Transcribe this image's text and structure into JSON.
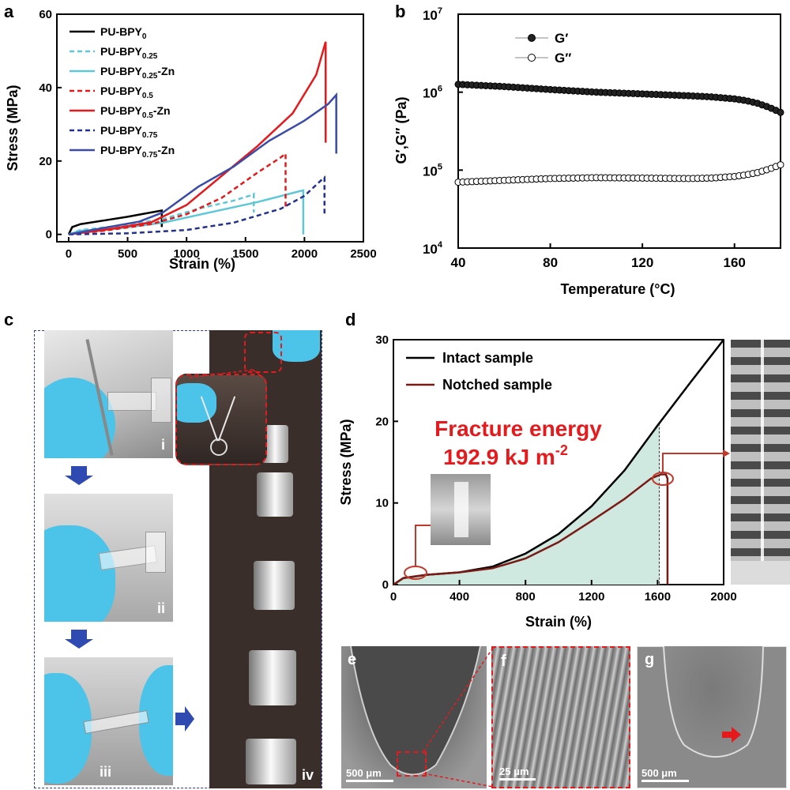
{
  "panel_labels": {
    "a": "a",
    "b": "b",
    "c": "c",
    "d": "d",
    "e": "e",
    "f": "f",
    "g": "g"
  },
  "chart_data": [
    {
      "panel": "a",
      "type": "line",
      "xlabel": "Strain (%)",
      "ylabel": "Stress (MPa)",
      "xlim": [
        -100,
        2500
      ],
      "ylim": [
        -2,
        60
      ],
      "xticks": [
        0,
        500,
        1000,
        1500,
        2000,
        2500
      ],
      "yticks": [
        0,
        20,
        40,
        60
      ],
      "legend_position": "top-left",
      "series": [
        {
          "name": "PU-BPY",
          "sub": "0",
          "suffix": "",
          "color": "#000000",
          "dash": "solid",
          "x": [
            0,
            30,
            100,
            300,
            500,
            650,
            790,
            790
          ],
          "y": [
            0,
            2,
            2.8,
            3.8,
            4.8,
            5.7,
            6.5,
            2
          ]
        },
        {
          "name": "PU-BPY",
          "sub": "0.25",
          "suffix": "",
          "color": "#5ec8d8",
          "dash": "dashed",
          "x": [
            0,
            100,
            400,
            800,
            1100,
            1400,
            1560,
            1570,
            1570
          ],
          "y": [
            0,
            1.2,
            2.2,
            4.2,
            7,
            9.2,
            10.8,
            11,
            6
          ]
        },
        {
          "name": "PU-BPY",
          "sub": "0.25",
          "suffix": "-Zn",
          "color": "#5ec8d8",
          "dash": "solid",
          "x": [
            0,
            100,
            400,
            800,
            1200,
            1600,
            1950,
            1990,
            1990
          ],
          "y": [
            0,
            1,
            1.5,
            3.2,
            6,
            8.8,
            11.7,
            12,
            0
          ]
        },
        {
          "name": "PU-BPY",
          "sub": "0.5",
          "suffix": "",
          "color": "#e41a1c",
          "dash": "dashed",
          "x": [
            0,
            300,
            700,
            1000,
            1300,
            1600,
            1800,
            1840,
            1840
          ],
          "y": [
            0,
            1,
            2.8,
            5.5,
            10,
            16.8,
            21,
            22,
            7
          ]
        },
        {
          "name": "PU-BPY",
          "sub": "0.5",
          "suffix": "-Zn",
          "color": "#e41a1c",
          "dash": "solid",
          "x": [
            0,
            300,
            700,
            1000,
            1300,
            1600,
            1900,
            2100,
            2180,
            2180
          ],
          "y": [
            0,
            1.2,
            3.3,
            8,
            16,
            24,
            33,
            43.5,
            52.5,
            25
          ]
        },
        {
          "name": "PU-BPY",
          "sub": "0.75",
          "suffix": "",
          "color": "#23318f",
          "dash": "dashed",
          "x": [
            0,
            500,
            1000,
            1400,
            1800,
            2000,
            2150,
            2170,
            2170
          ],
          "y": [
            0,
            0.3,
            1.2,
            3.2,
            7,
            10.5,
            15,
            15.5,
            5
          ]
        },
        {
          "name": "PU-BPY",
          "sub": "0.75",
          "suffix": "-Zn",
          "color": "#3a4ba8",
          "dash": "solid",
          "x": [
            0,
            200,
            600,
            800,
            1100,
            1400,
            1700,
            2000,
            2200,
            2270,
            2270
          ],
          "y": [
            0,
            1.2,
            3.5,
            6,
            13,
            18.5,
            25.5,
            31,
            35.5,
            38,
            22
          ]
        }
      ]
    },
    {
      "panel": "b",
      "type": "scatter",
      "xlabel": "Temperature (°C)",
      "ylabel": "G′,G′′ (Pa)",
      "xlim": [
        40,
        180
      ],
      "ylim_log10": [
        4,
        7
      ],
      "xticks": [
        40,
        80,
        120,
        160
      ],
      "yticks": [
        {
          "base": "10",
          "exp": "4",
          "v": 4
        },
        {
          "base": "10",
          "exp": "5",
          "v": 5
        },
        {
          "base": "10",
          "exp": "6",
          "v": 6
        },
        {
          "base": "10",
          "exp": "7",
          "v": 7
        }
      ],
      "y_scale": "log",
      "legend_position": "top-left",
      "series": [
        {
          "name": "G′",
          "marker": "filled",
          "color": "#000000",
          "x": [
            40,
            60,
            80,
            100,
            120,
            140,
            150,
            160,
            165,
            170,
            175,
            180
          ],
          "y": [
            1260000,
            1180000,
            1080000,
            1000000,
            950000,
            900000,
            870000,
            820000,
            780000,
            720000,
            640000,
            550000
          ]
        },
        {
          "name": "G′′",
          "marker": "hollow",
          "color": "#000000",
          "x": [
            40,
            60,
            80,
            100,
            120,
            140,
            150,
            160,
            165,
            170,
            175,
            180
          ],
          "y": [
            70000,
            74000,
            78000,
            80000,
            79000,
            78000,
            79000,
            83000,
            87000,
            93000,
            103000,
            117000
          ]
        }
      ]
    },
    {
      "panel": "d",
      "type": "area",
      "xlabel": "Strain (%)",
      "ylabel": "Stress (MPa)",
      "xlim": [
        0,
        2000
      ],
      "ylim": [
        0,
        30
      ],
      "xticks": [
        0,
        400,
        800,
        1200,
        1600,
        2000
      ],
      "yticks": [
        0,
        10,
        20,
        30
      ],
      "legend_position": "top-left",
      "annotation_line1": "Fracture energy",
      "annotation_line2": "192.9 kJ m",
      "annotation_sup": "-2",
      "fill_color": "#cfe9e0",
      "series": [
        {
          "name": "Intact sample",
          "color": "#000000",
          "x": [
            0,
            60,
            200,
            400,
            600,
            800,
            1000,
            1200,
            1400,
            1600,
            1800,
            2000
          ],
          "y": [
            0,
            0.8,
            1.2,
            1.5,
            2.2,
            3.8,
            6.2,
            9.6,
            14,
            19.5,
            24.8,
            30
          ]
        },
        {
          "name": "Notched sample",
          "color": "#7a1a14",
          "x": [
            0,
            60,
            200,
            400,
            600,
            800,
            1000,
            1200,
            1400,
            1560,
            1620,
            1650,
            1660,
            1660
          ],
          "y": [
            0,
            0.8,
            1.2,
            1.5,
            2,
            3.2,
            5.2,
            7.8,
            10.5,
            13,
            13.5,
            13.5,
            13,
            0
          ]
        }
      ],
      "fill_upto_x": 1610
    }
  ],
  "panel_c": {
    "step_labels": [
      "i",
      "ii",
      "iii",
      "iv"
    ]
  },
  "sem": {
    "e_scale": "500 μm",
    "f_scale": "25 μm",
    "g_scale": "500 μm"
  },
  "colors": {
    "panel_c_border": "#2e3c9e",
    "arrow_blue": "#2f4ab0",
    "highlight_red": "#e41a1c",
    "glove_blue": "#4cc3e8",
    "dark_background": "#3a2e2a"
  }
}
